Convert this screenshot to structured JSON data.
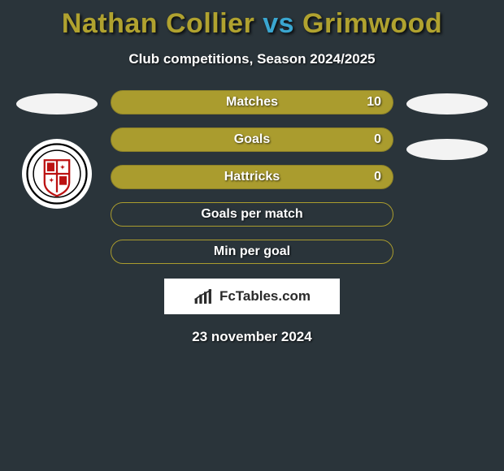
{
  "title": {
    "player1": "Nathan Collier",
    "vs": "vs",
    "player2": "Grimwood",
    "player1_color": "#b0a22f",
    "vs_color": "#3aa6d0",
    "player2_color": "#b0a22f"
  },
  "subtitle": "Club competitions, Season 2024/2025",
  "bars": [
    {
      "label": "Matches",
      "left": "",
      "right": "10",
      "fill": "#aa9c2e",
      "border": "#8d8228"
    },
    {
      "label": "Goals",
      "left": "",
      "right": "0",
      "fill": "#aa9c2e",
      "border": "#8d8228"
    },
    {
      "label": "Hattricks",
      "left": "",
      "right": "0",
      "fill": "#aa9c2e",
      "border": "#8d8228"
    },
    {
      "label": "Goals per match",
      "left": "",
      "right": "",
      "fill": "transparent",
      "border": "#aa9c2e"
    },
    {
      "label": "Min per goal",
      "left": "",
      "right": "",
      "fill": "transparent",
      "border": "#aa9c2e"
    }
  ],
  "bar_style": {
    "height": 30,
    "radius": 15,
    "label_fontsize": 16,
    "label_color": "#ffffff"
  },
  "ellipse_color": "#f3f3f3",
  "background_color": "#2a343a",
  "brand": "FcTables.com",
  "date": "23 november 2024"
}
